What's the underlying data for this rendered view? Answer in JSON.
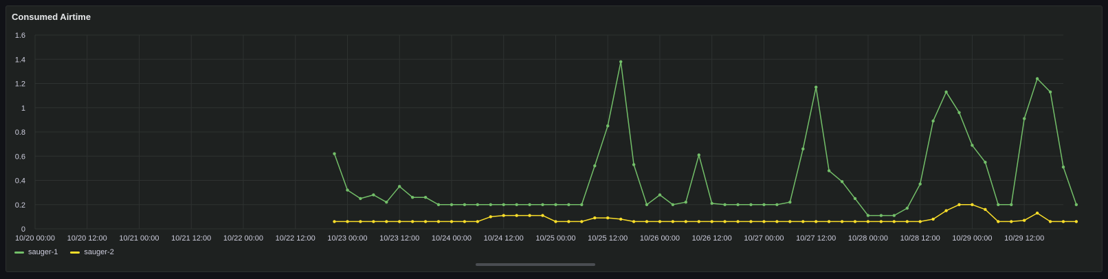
{
  "panel": {
    "title": "Consumed Airtime"
  },
  "chart_data": {
    "type": "line",
    "title": "Consumed Airtime",
    "xlabel": "",
    "ylabel": "",
    "ylim": [
      0,
      1.6
    ],
    "yticks": [
      0,
      0.2,
      0.4,
      0.6,
      0.8,
      1,
      1.2,
      1.4,
      1.6
    ],
    "ytick_labels": [
      "0",
      "0.2",
      "0.4",
      "0.6",
      "0.8",
      "1",
      "1.2",
      "1.4",
      "1.6"
    ],
    "xlim": [
      "10/20 00:00",
      "10/29 21:00"
    ],
    "xtick_labels": [
      "10/20 00:00",
      "10/20 12:00",
      "10/21 00:00",
      "10/21 12:00",
      "10/22 00:00",
      "10/22 12:00",
      "10/23 00:00",
      "10/23 12:00",
      "10/24 00:00",
      "10/24 12:00",
      "10/25 00:00",
      "10/25 12:00",
      "10/26 00:00",
      "10/26 12:00",
      "10/27 00:00",
      "10/27 12:00",
      "10/28 00:00",
      "10/28 12:00",
      "10/29 00:00",
      "10/29 12:00"
    ],
    "x_start": "10/22 21:00",
    "x_step": "3h",
    "grid": true,
    "legend": "bottom-left",
    "series": [
      {
        "name": "sauger-1",
        "color": "#73bf69",
        "values": [
          0.62,
          0.32,
          0.25,
          0.28,
          0.22,
          0.35,
          0.26,
          0.26,
          0.2,
          0.2,
          0.2,
          0.2,
          0.2,
          0.2,
          0.2,
          0.2,
          0.2,
          0.2,
          0.2,
          0.2,
          0.52,
          0.85,
          1.38,
          0.53,
          0.2,
          0.28,
          0.2,
          0.22,
          0.61,
          0.21,
          0.2,
          0.2,
          0.2,
          0.2,
          0.2,
          0.22,
          0.66,
          1.17,
          0.48,
          0.39,
          0.25,
          0.11,
          0.11,
          0.11,
          0.17,
          0.37,
          0.89,
          1.13,
          0.96,
          0.69,
          0.55,
          0.2,
          0.2,
          0.91,
          1.24,
          1.13,
          0.51,
          0.2
        ]
      },
      {
        "name": "sauger-2",
        "color": "#fade2a",
        "values": [
          0.06,
          0.06,
          0.06,
          0.06,
          0.06,
          0.06,
          0.06,
          0.06,
          0.06,
          0.06,
          0.06,
          0.06,
          0.1,
          0.11,
          0.11,
          0.11,
          0.11,
          0.06,
          0.06,
          0.06,
          0.09,
          0.09,
          0.08,
          0.06,
          0.06,
          0.06,
          0.06,
          0.06,
          0.06,
          0.06,
          0.06,
          0.06,
          0.06,
          0.06,
          0.06,
          0.06,
          0.06,
          0.06,
          0.06,
          0.06,
          0.06,
          0.06,
          0.06,
          0.06,
          0.06,
          0.06,
          0.08,
          0.15,
          0.2,
          0.2,
          0.16,
          0.06,
          0.06,
          0.07,
          0.13,
          0.06,
          0.06,
          0.06
        ]
      }
    ]
  }
}
